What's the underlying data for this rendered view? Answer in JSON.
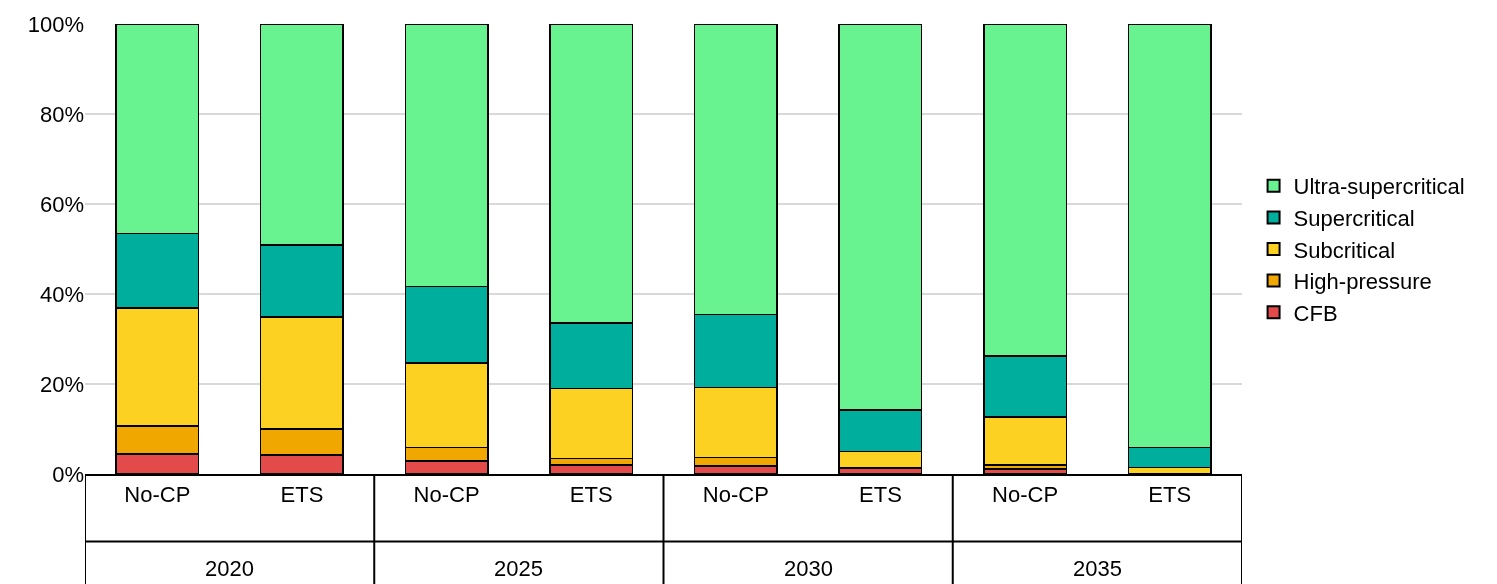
{
  "chart_data": {
    "type": "bar",
    "stacked": true,
    "categories": [
      "No-CP",
      "ETS",
      "No-CP",
      "ETS",
      "No-CP",
      "ETS",
      "No-CP",
      "ETS"
    ],
    "annotations": [
      "2020",
      "2025",
      "2030",
      "2035"
    ],
    "series": [
      {
        "name": "CFB",
        "color": "#e34a4a",
        "values": [
          4.4,
          4.2,
          2.9,
          2.0,
          1.8,
          1.2,
          1.1,
          null
        ]
      },
      {
        "name": "High-pressure",
        "color": "#f0a800",
        "values": [
          6.3,
          5.8,
          3.0,
          1.5,
          1.9,
          0.3,
          0.9,
          null
        ]
      },
      {
        "name": "Subcritical",
        "color": "#fdd122",
        "values": [
          26.2,
          24.9,
          18.8,
          15.5,
          15.5,
          3.5,
          10.7,
          1.5
        ]
      },
      {
        "name": "Supercritical",
        "color": "#00ae9e",
        "values": [
          16.6,
          16.0,
          17.0,
          14.6,
          16.2,
          9.2,
          13.5,
          4.4
        ]
      },
      {
        "name": "Ultra-supercritical",
        "color": "#68f390",
        "values": [
          46.5,
          49.1,
          58.3,
          66.4,
          64.6,
          85.8,
          73.8,
          94.1
        ]
      }
    ],
    "ylim": [
      0,
      100
    ],
    "yticks": [
      {
        "value": 0,
        "label": "0%"
      },
      {
        "value": 20,
        "label": "20%"
      },
      {
        "value": 40,
        "label": "40%"
      },
      {
        "value": 60,
        "label": "60%"
      },
      {
        "value": 80,
        "label": "80%"
      },
      {
        "value": 100,
        "label": "100%"
      }
    ],
    "grid": "y",
    "legend": "right"
  }
}
